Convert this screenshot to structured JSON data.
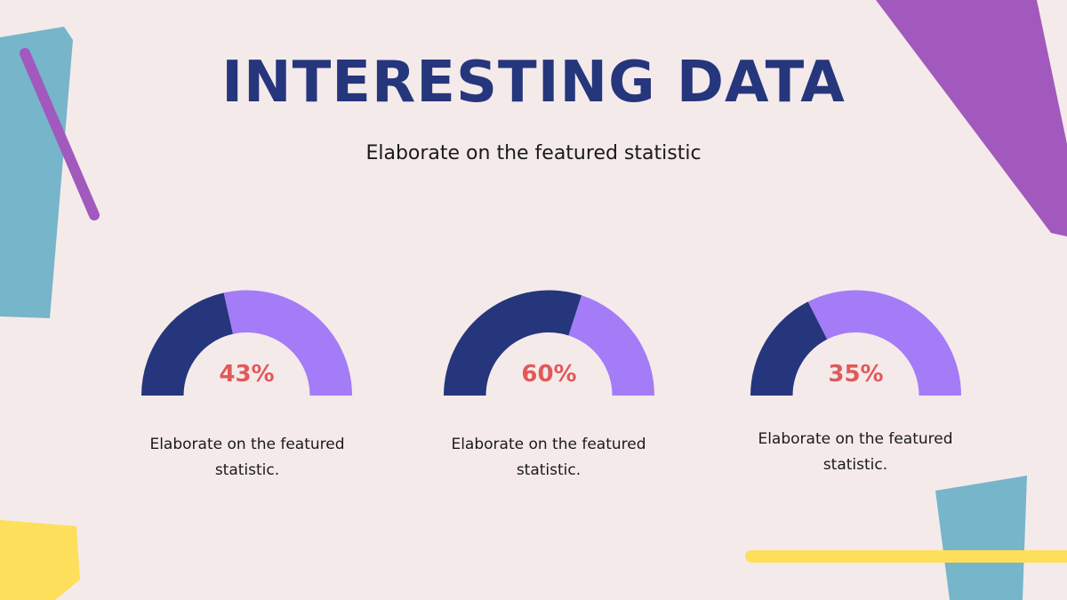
{
  "slide": {
    "title": "INTERESTING DATA",
    "subtitle": "Elaborate on the featured statistic"
  },
  "colors": {
    "background": "#f5eaea",
    "title": "#25367c",
    "gauge_filled": "#25367c",
    "gauge_remaining": "#a47cf7",
    "value_text": "#e05a5a",
    "deco_teal": "#76b5ca",
    "deco_purple": "#a259bd",
    "deco_yellow": "#fddf5c"
  },
  "chart_data": [
    {
      "type": "gauge",
      "value": 43,
      "label": "43%",
      "caption": "Elaborate on the featured statistic."
    },
    {
      "type": "gauge",
      "value": 60,
      "label": "60%",
      "caption": "Elaborate on the featured statistic."
    },
    {
      "type": "gauge",
      "value": 35,
      "label": "35%",
      "caption": "Elaborate on the featured statistic."
    }
  ]
}
